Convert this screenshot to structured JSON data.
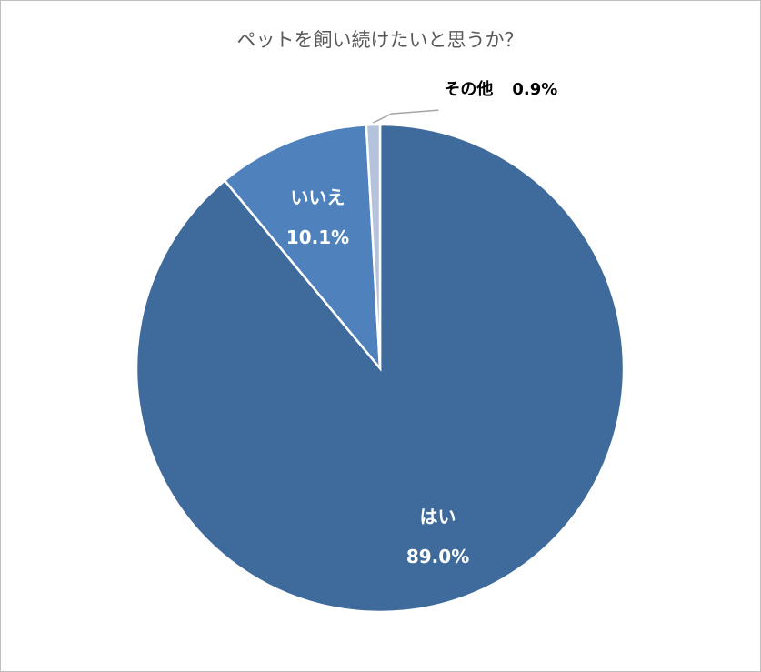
{
  "chart_data": {
    "type": "pie",
    "title": "ペットを飼い続けたいと思うか？",
    "categories": [
      "はい",
      "いいえ",
      "その他"
    ],
    "values": [
      89.0,
      10.1,
      0.9
    ],
    "value_labels": [
      "89.0%",
      "10.1%",
      "0.9%"
    ],
    "colors": [
      "#3f6a9c",
      "#4f81bd",
      "#b4c3dc"
    ]
  }
}
